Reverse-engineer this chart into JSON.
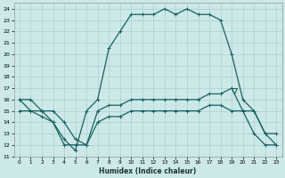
{
  "xlabel": "Humidex (Indice chaleur)",
  "bg_color": "#cce8e8",
  "grid_color": "#aad0d0",
  "line_color": "#1a6060",
  "xlim": [
    -0.5,
    23.5
  ],
  "ylim": [
    11,
    24.5
  ],
  "xticks": [
    0,
    1,
    2,
    3,
    4,
    5,
    6,
    7,
    8,
    9,
    10,
    11,
    12,
    13,
    14,
    15,
    16,
    17,
    18,
    19,
    20,
    21,
    22,
    23
  ],
  "yticks": [
    11,
    12,
    13,
    14,
    15,
    16,
    17,
    18,
    19,
    20,
    21,
    22,
    23,
    24
  ],
  "line1_x": [
    0,
    1,
    2,
    3,
    4,
    5,
    6,
    7,
    8,
    9,
    10,
    11,
    12,
    13,
    14,
    15,
    16,
    17,
    18,
    19,
    20,
    21,
    22,
    23
  ],
  "line1_y": [
    16,
    16,
    15,
    14,
    12.5,
    11.5,
    15,
    16,
    20.5,
    22,
    23.5,
    23.5,
    23.5,
    24,
    23.5,
    24,
    23.5,
    23.5,
    23,
    20,
    16,
    15,
    13,
    13
  ],
  "line2_x": [
    0,
    1,
    2,
    3,
    4,
    5,
    6,
    7,
    8,
    9,
    10,
    11,
    12,
    13,
    14,
    15,
    16,
    17,
    18,
    19,
    20,
    21,
    22,
    23
  ],
  "line2_y": [
    16,
    15,
    15,
    15,
    14,
    12.5,
    12,
    15,
    15.5,
    15.5,
    16,
    16,
    16,
    16,
    16,
    16,
    16,
    16.5,
    16.5,
    17,
    15,
    15,
    13,
    12
  ],
  "line3_x": [
    0,
    1,
    2,
    3,
    4,
    5,
    6,
    7,
    8,
    9,
    10,
    11,
    12,
    13,
    14,
    15,
    16,
    17,
    18,
    19,
    20,
    21,
    22,
    23
  ],
  "line3_y": [
    15,
    15,
    14.5,
    14,
    12,
    12,
    12,
    14,
    14.5,
    14.5,
    15,
    15,
    15,
    15,
    15,
    15,
    15,
    15.5,
    15.5,
    15,
    15,
    13,
    12,
    12
  ],
  "triangle_x": 19.2,
  "triangle_y": 16.8,
  "figsize": [
    3.2,
    2.0
  ],
  "dpi": 100
}
